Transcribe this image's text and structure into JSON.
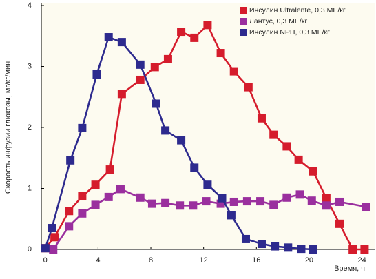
{
  "chart_data": {
    "type": "line",
    "y_label": "Скорость инфузии глюкозы, мг/кг/мин",
    "x_label": "Время, ч",
    "xlim": [
      -0.3,
      24.7
    ],
    "ylim": [
      0,
      4
    ],
    "xticks": [
      0,
      4,
      8,
      12,
      16,
      20,
      24
    ],
    "yticks": [
      0,
      1,
      2,
      3,
      4
    ],
    "series": [
      {
        "name": "Инсулин Ultralente, 0,3 МЕ/кг",
        "color": "#d51c2c",
        "x": [
          0,
          0.7,
          1.8,
          2.8,
          3.8,
          4.9,
          5.8,
          7.2,
          8.3,
          9.3,
          10.3,
          11.3,
          12.3,
          13.3,
          14.3,
          15.4,
          16.4,
          17.3,
          18.3,
          19.2,
          20.3,
          21.3,
          22.3,
          23.3,
          24.2
        ],
        "values": [
          0.02,
          0.2,
          0.63,
          0.87,
          1.06,
          1.31,
          2.55,
          2.78,
          2.99,
          3.12,
          3.57,
          3.47,
          3.68,
          3.22,
          2.92,
          2.66,
          2.15,
          1.88,
          1.69,
          1.47,
          1.28,
          0.84,
          0.42,
          0,
          0
        ]
      },
      {
        "name": "Лантус, 0,3 МЕ/кг",
        "color": "#9a2f9e",
        "x": [
          0.6,
          1.8,
          2.8,
          3.8,
          4.8,
          5.7,
          7.2,
          8.1,
          9.1,
          10.2,
          11.2,
          12.2,
          13.3,
          14.3,
          15.3,
          16.3,
          17.3,
          18.3,
          19.3,
          20.2,
          21.3,
          22.3,
          24.3
        ],
        "values": [
          0,
          0.38,
          0.59,
          0.73,
          0.86,
          0.99,
          0.85,
          0.75,
          0.76,
          0.72,
          0.72,
          0.79,
          0.75,
          0.78,
          0.79,
          0.79,
          0.73,
          0.85,
          0.9,
          0.8,
          0.72,
          0.78,
          0.7
        ]
      },
      {
        "name": "Инсулин NPH, 0,3 МЕ/кг",
        "color": "#2d2a8e",
        "x": [
          0,
          0.5,
          1.9,
          2.8,
          3.9,
          4.8,
          5.8,
          7.2,
          8.4,
          9.1,
          10.3,
          11.3,
          12.3,
          13.4,
          14.1,
          15.2,
          16.4,
          17.4,
          18.4,
          19.4,
          20.3
        ],
        "values": [
          0.02,
          0.35,
          1.46,
          1.99,
          2.87,
          3.48,
          3.4,
          3.03,
          2.39,
          1.95,
          1.79,
          1.34,
          1.06,
          0.84,
          0.56,
          0.17,
          0.09,
          0.05,
          0.03,
          0.01,
          0
        ]
      }
    ]
  }
}
